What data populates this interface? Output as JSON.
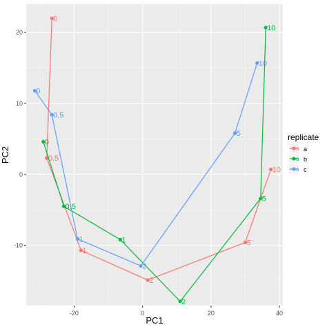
{
  "chart_data": {
    "type": "line",
    "xlabel": "PC1",
    "ylabel": "PC2",
    "xlim": [
      -34,
      41
    ],
    "ylim": [
      -18.5,
      24
    ],
    "x_ticks": [
      -20,
      0,
      20,
      40
    ],
    "y_ticks": [
      -10,
      0,
      10,
      20
    ],
    "grid": true,
    "legend": {
      "title": "replicate",
      "position": "right"
    },
    "series": [
      {
        "name": "a",
        "color": "#F8766D",
        "points": [
          {
            "label": "0",
            "x": -26.5,
            "y": 22.0
          },
          {
            "label": "0.5",
            "x": -28.0,
            "y": 2.3
          },
          {
            "label": "1",
            "x": -18.0,
            "y": -10.7
          },
          {
            "label": "2",
            "x": 1.5,
            "y": -14.9
          },
          {
            "label": "5",
            "x": 30.0,
            "y": -9.6
          },
          {
            "label": "10",
            "x": 37.5,
            "y": 0.7
          }
        ]
      },
      {
        "name": "b",
        "color": "#00BA38",
        "points": [
          {
            "label": "0",
            "x": -29.0,
            "y": 4.6
          },
          {
            "label": "0.5",
            "x": -23.0,
            "y": -4.5
          },
          {
            "label": "1",
            "x": -6.5,
            "y": -9.2
          },
          {
            "label": "2",
            "x": 11.0,
            "y": -17.9
          },
          {
            "label": "5",
            "x": 34.5,
            "y": -3.4
          },
          {
            "label": "10",
            "x": 36.0,
            "y": 20.7
          }
        ]
      },
      {
        "name": "c",
        "color": "#619CFF",
        "points": [
          {
            "label": "0",
            "x": -31.5,
            "y": 11.8
          },
          {
            "label": "0.5",
            "x": -26.5,
            "y": 8.4
          },
          {
            "label": "1",
            "x": -19.0,
            "y": -9.1
          },
          {
            "label": "2",
            "x": -0.5,
            "y": -12.9
          },
          {
            "label": "5",
            "x": 27.0,
            "y": 5.8
          },
          {
            "label": "10",
            "x": 33.5,
            "y": 15.7
          }
        ]
      }
    ]
  }
}
